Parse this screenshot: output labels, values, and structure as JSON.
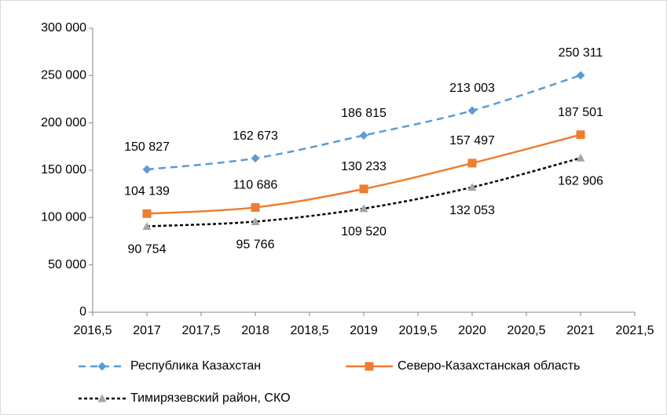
{
  "chart_data": {
    "type": "line",
    "series": [
      {
        "name": "Республика Казахстан",
        "color": "#5b9bd5",
        "dash": "dashed",
        "marker": "diamond",
        "x": [
          2017,
          2018,
          2019,
          2020,
          2021
        ],
        "values": [
          150827,
          162673,
          186815,
          213003,
          250311
        ],
        "value_labels": [
          "150 827",
          "162 673",
          "186 815",
          "213 003",
          "250 311"
        ]
      },
      {
        "name": "Северо-Казахстанская область",
        "color": "#ed7d31",
        "dash": "solid",
        "marker": "square",
        "x": [
          2017,
          2018,
          2019,
          2020,
          2021
        ],
        "values": [
          104139,
          110686,
          130233,
          157497,
          187501
        ],
        "value_labels": [
          "104 139",
          "110 686",
          "130 233",
          "157 497",
          "187 501"
        ]
      },
      {
        "name": "Тимирязевский район, СКО",
        "color": "#000000",
        "marker_color": "#a5a5a5",
        "dash": "dotted",
        "marker": "triangle",
        "x": [
          2017,
          2018,
          2019,
          2020,
          2021
        ],
        "values": [
          90754,
          95766,
          109520,
          132053,
          162906
        ],
        "value_labels": [
          "90 754",
          "95 766",
          "109 520",
          "132 053",
          "162 906"
        ]
      }
    ],
    "xlim": [
      2016.5,
      2021.5
    ],
    "xticks": [
      {
        "value": 2016.5,
        "label": "2016,5"
      },
      2017,
      {
        "value": 2017.5,
        "label": "2017,5"
      },
      2018,
      {
        "value": 2018.5,
        "label": "2018,5"
      },
      2019,
      {
        "value": 2019.5,
        "label": "2019,5"
      },
      2020,
      {
        "value": 2020.5,
        "label": "2020,5"
      },
      2021,
      {
        "value": 2021.5,
        "label": "2021,5"
      }
    ],
    "ylim": [
      0,
      300000
    ],
    "yticks": [
      0,
      {
        "value": 50000,
        "label": "50 000"
      },
      {
        "value": 100000,
        "label": "100 000"
      },
      {
        "value": 150000,
        "label": "150 000"
      },
      {
        "value": 200000,
        "label": "200 000"
      },
      {
        "value": 250000,
        "label": "250 000"
      },
      {
        "value": 300000,
        "label": "300 000"
      }
    ],
    "grid": false,
    "legend": "bottom"
  }
}
